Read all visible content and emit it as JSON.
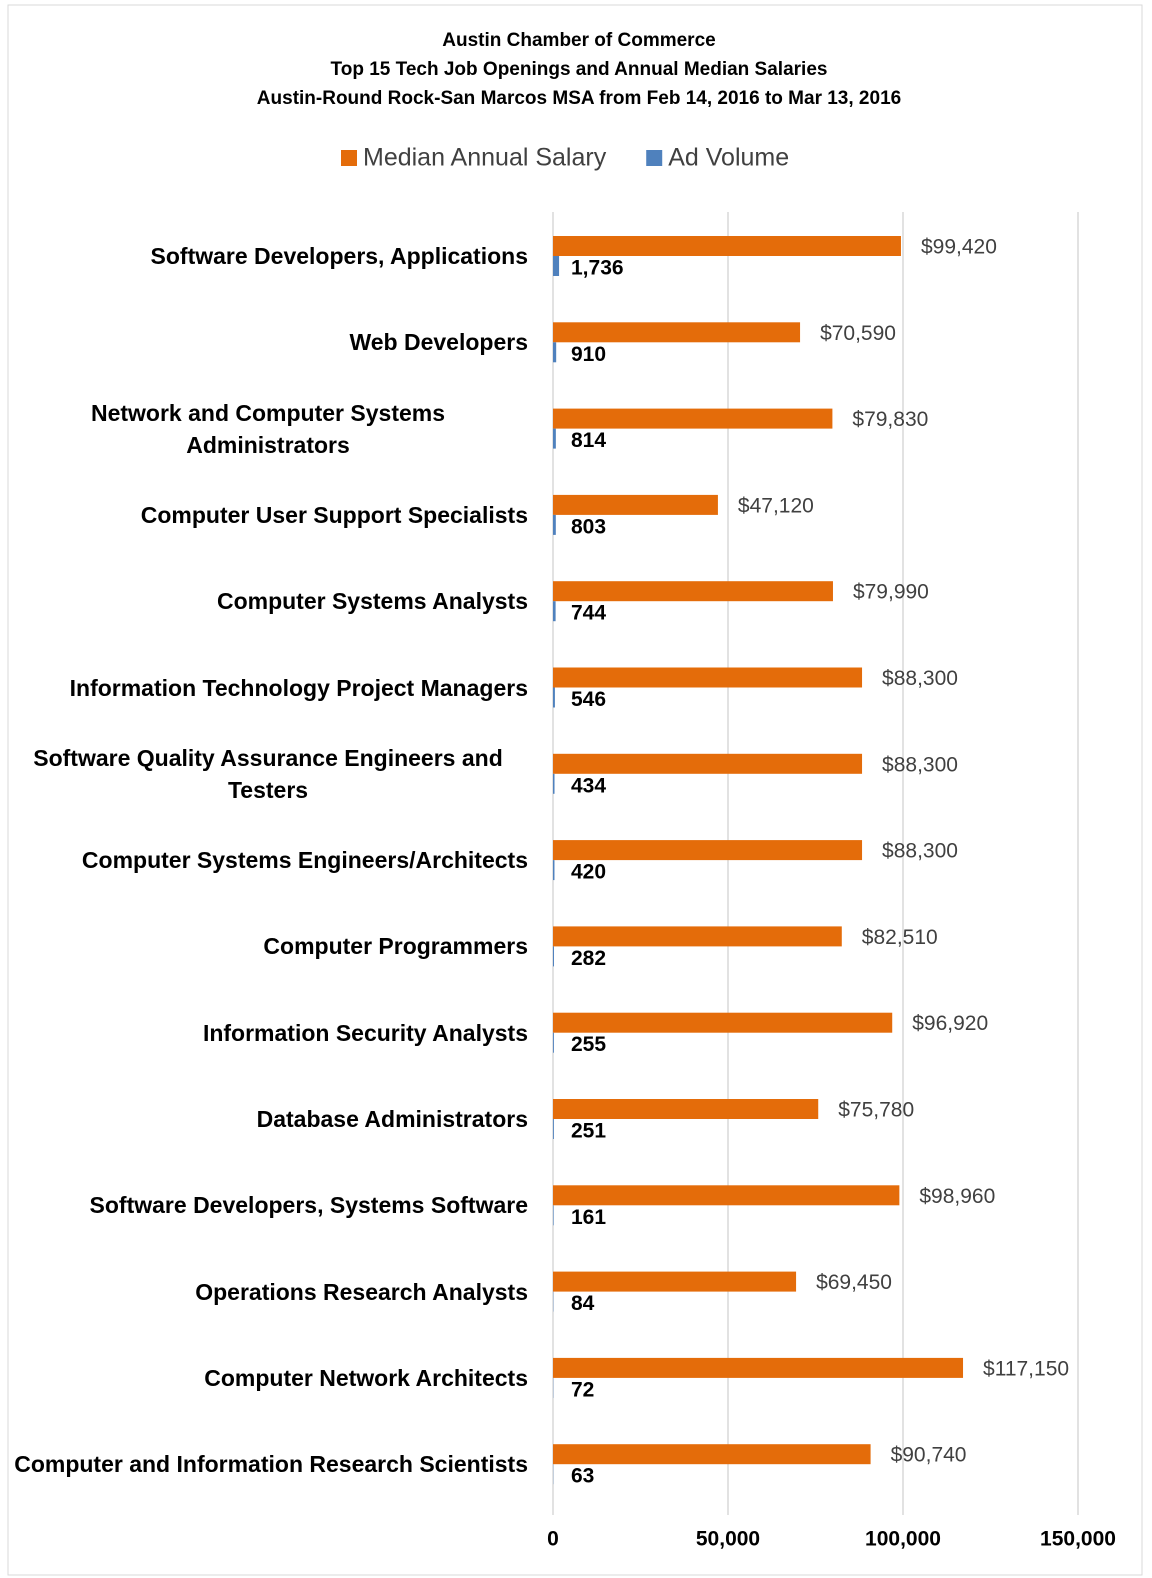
{
  "chart_data": {
    "type": "bar",
    "orientation": "horizontal",
    "title": [
      "Austin Chamber of Commerce",
      "Top 15 Tech Job Openings and Annual Median Salaries",
      "Austin-Round Rock-San Marcos MSA from Feb 14, 2016 to Mar 13, 2016"
    ],
    "categories": [
      "Software Developers, Applications",
      "Web Developers",
      "Network and Computer Systems Administrators",
      "Computer User Support Specialists",
      "Computer Systems Analysts",
      "Information Technology Project Managers",
      "Software Quality Assurance Engineers and Testers",
      "Computer Systems Engineers/Architects",
      "Computer Programmers",
      "Information Security Analysts",
      "Database Administrators",
      "Software Developers, Systems Software",
      "Operations Research Analysts",
      "Computer Network Architects",
      "Computer and Information Research Scientists"
    ],
    "series": [
      {
        "name": "Median Annual Salary",
        "color": "#e46c0a",
        "values": [
          99420,
          70590,
          79830,
          47120,
          79990,
          88300,
          88300,
          88300,
          82510,
          96920,
          75780,
          98960,
          69450,
          117150,
          90740
        ],
        "value_labels": [
          "$99,420",
          "$70,590",
          "$79,830",
          "$47,120",
          "$79,990",
          "$88,300",
          "$88,300",
          "$88,300",
          "$82,510",
          "$96,920",
          "$75,780",
          "$98,960",
          "$69,450",
          "$117,150",
          "$90,740"
        ]
      },
      {
        "name": "Ad Volume",
        "color": "#4f81bd",
        "values": [
          1736,
          910,
          814,
          803,
          744,
          546,
          434,
          420,
          282,
          255,
          251,
          161,
          84,
          72,
          63
        ],
        "value_labels": [
          "1,736",
          "910",
          "814",
          "803",
          "744",
          "546",
          "434",
          "420",
          "282",
          "255",
          "251",
          "161",
          "84",
          "72",
          "63"
        ]
      }
    ],
    "xlim": [
      0,
      150000
    ],
    "xticks": [
      0,
      {
        "value": 50000,
        "label": "50,000"
      },
      {
        "value": 100000,
        "label": "100,000"
      },
      {
        "value": 150000,
        "label": "150,000"
      }
    ],
    "grid": true,
    "legend": "top"
  }
}
